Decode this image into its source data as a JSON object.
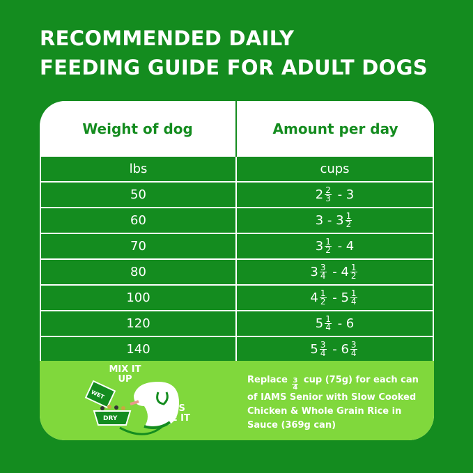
{
  "title": {
    "line1": "RECOMMENDED DAILY",
    "line2": "FEEDING GUIDE FOR ADULT DOGS"
  },
  "table": {
    "headers": [
      "Weight of dog",
      "Amount per day"
    ],
    "units": [
      "lbs",
      "cups"
    ],
    "rows": [
      {
        "weight": "50",
        "amount": [
          {
            "w": "2",
            "n": "2",
            "d": "3"
          },
          {
            "w": "3"
          }
        ]
      },
      {
        "weight": "60",
        "amount": [
          {
            "w": "3"
          },
          {
            "w": "3",
            "n": "1",
            "d": "2"
          }
        ]
      },
      {
        "weight": "70",
        "amount": [
          {
            "w": "3",
            "n": "1",
            "d": "2"
          },
          {
            "w": "4"
          }
        ]
      },
      {
        "weight": "80",
        "amount": [
          {
            "w": "3",
            "n": "3",
            "d": "4"
          },
          {
            "w": "4",
            "n": "1",
            "d": "2"
          }
        ]
      },
      {
        "weight": "100",
        "amount": [
          {
            "w": "4",
            "n": "1",
            "d": "2"
          },
          {
            "w": "5",
            "n": "1",
            "d": "4"
          }
        ]
      },
      {
        "weight": "120",
        "amount": [
          {
            "w": "5",
            "n": "1",
            "d": "4"
          },
          {
            "w": "6"
          }
        ]
      },
      {
        "weight": "140",
        "amount": [
          {
            "w": "5",
            "n": "3",
            "d": "4"
          },
          {
            "w": "6",
            "n": "3",
            "d": "4"
          }
        ]
      }
    ]
  },
  "note": {
    "pre": "Replace",
    "frac_n": "3",
    "frac_d": "4",
    "post": "cup (75g) for each can of IAMS Senior with Slow Cooked Chicken & Whole Grain Rice in Sauce (369g can)"
  },
  "illustration": {
    "mix": "MIX IT UP",
    "wet": "WET",
    "dry": "DRY",
    "love": "DOGS LOVE IT"
  },
  "colors": {
    "background": "#148c1f",
    "accent": "#80d83c",
    "card": "#ffffff"
  }
}
